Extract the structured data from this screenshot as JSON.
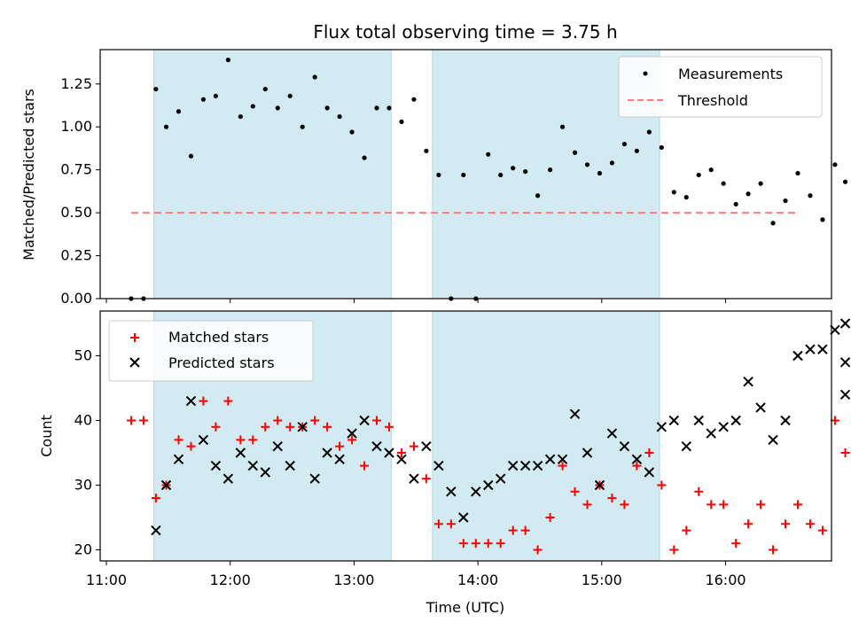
{
  "chart_data": [
    {
      "type": "scatter",
      "title": "Flux total observing time = 3.75 h",
      "xlabel": "",
      "ylabel": "Matched/Predicted stars",
      "xlim": [
        "11:00",
        "16:50"
      ],
      "ylim": [
        0,
        1.45
      ],
      "yticks": [
        "0.00",
        "0.25",
        "0.50",
        "0.75",
        "1.00",
        "1.25"
      ],
      "grid": false,
      "legend_placement": "top-right",
      "shaded_intervals": [
        [
          "11:23",
          "13:18"
        ],
        [
          "13:38",
          "15:28"
        ]
      ],
      "shade_color": "#add8e6",
      "series": [
        {
          "name": "Measurements",
          "marker": "dot",
          "color": "#000000",
          "x": [
            "11:12",
            "11:18",
            "11:24",
            "11:29",
            "11:35",
            "11:41",
            "11:47",
            "11:53",
            "11:59",
            "12:05",
            "12:11",
            "12:17",
            "12:23",
            "12:29",
            "12:35",
            "12:41",
            "12:47",
            "12:53",
            "12:59",
            "13:05",
            "13:11",
            "13:17",
            "13:23",
            "13:29",
            "13:35",
            "13:41",
            "13:47",
            "13:53",
            "13:59",
            "14:05",
            "14:11",
            "14:17",
            "14:23",
            "14:29",
            "14:35",
            "14:41",
            "14:47",
            "14:53",
            "14:59",
            "15:05",
            "15:11",
            "15:17",
            "15:23",
            "15:29",
            "15:35",
            "15:41",
            "15:47",
            "15:53",
            "15:59",
            "16:05",
            "16:11",
            "16:17",
            "16:23",
            "16:29",
            "16:35",
            "16:41",
            "16:47",
            "16:53",
            "16:58"
          ],
          "y": [
            0.0,
            0.0,
            1.22,
            1.0,
            1.09,
            0.83,
            1.16,
            1.18,
            1.39,
            1.06,
            1.12,
            1.22,
            1.11,
            1.18,
            1.0,
            1.29,
            1.11,
            1.06,
            0.97,
            0.82,
            1.11,
            1.11,
            1.03,
            1.16,
            0.86,
            0.72,
            0.0,
            0.72,
            0.0,
            0.84,
            0.72,
            0.76,
            0.74,
            0.6,
            0.75,
            1.0,
            0.85,
            0.78,
            0.73,
            0.79,
            0.9,
            0.86,
            0.97,
            0.88,
            0.62,
            0.59,
            0.72,
            0.75,
            0.67,
            0.55,
            0.61,
            0.67,
            0.44,
            0.57,
            0.73,
            0.6,
            0.46,
            0.78,
            0.68
          ]
        },
        {
          "name": "Threshold",
          "marker": "dashed-line",
          "color": "#ff7b7b",
          "x": [
            "11:12",
            "16:35"
          ],
          "y": [
            0.5,
            0.5
          ]
        }
      ]
    },
    {
      "type": "scatter",
      "title": "",
      "xlabel": "Time (UTC)",
      "ylabel": "Count",
      "xlim": [
        "11:00",
        "16:50"
      ],
      "ylim": [
        18,
        56
      ],
      "yticks": [
        "20",
        "30",
        "40",
        "50"
      ],
      "xticks": [
        "11:00",
        "12:00",
        "13:00",
        "14:00",
        "15:00",
        "16:00"
      ],
      "grid": false,
      "legend_placement": "top-left",
      "shaded_intervals": [
        [
          "11:23",
          "13:18"
        ],
        [
          "13:38",
          "15:28"
        ]
      ],
      "shade_color": "#add8e6",
      "series": [
        {
          "name": "Matched stars",
          "marker": "plus",
          "color": "#ff0000",
          "x": [
            "11:12",
            "11:18",
            "11:24",
            "11:29",
            "11:35",
            "11:41",
            "11:47",
            "11:53",
            "11:59",
            "12:05",
            "12:11",
            "12:17",
            "12:23",
            "12:29",
            "12:35",
            "12:41",
            "12:47",
            "12:53",
            "12:59",
            "13:05",
            "13:11",
            "13:17",
            "13:23",
            "13:29",
            "13:35",
            "13:41",
            "13:47",
            "13:53",
            "13:59",
            "14:05",
            "14:11",
            "14:17",
            "14:23",
            "14:29",
            "14:35",
            "14:41",
            "14:47",
            "14:53",
            "14:59",
            "15:05",
            "15:11",
            "15:17",
            "15:23",
            "15:29",
            "15:35",
            "15:41",
            "15:47",
            "15:53",
            "15:59",
            "16:05",
            "16:11",
            "16:17",
            "16:23",
            "16:29",
            "16:35",
            "16:41",
            "16:47",
            "16:53",
            "16:58"
          ],
          "y": [
            40,
            40,
            28,
            30,
            37,
            36,
            43,
            39,
            43,
            37,
            37,
            39,
            40,
            39,
            39,
            40,
            39,
            36,
            37,
            33,
            40,
            39,
            35,
            36,
            31,
            24,
            24,
            21,
            21,
            21,
            21,
            23,
            23,
            20,
            25,
            33,
            29,
            27,
            30,
            28,
            27,
            33,
            35,
            30,
            20,
            23,
            29,
            27,
            27,
            21,
            24,
            27,
            20,
            24,
            27,
            24,
            23,
            40,
            35
          ]
        },
        {
          "name": "Predicted stars",
          "marker": "x",
          "color": "#000000",
          "x": [
            "11:24",
            "11:29",
            "11:35",
            "11:41",
            "11:47",
            "11:53",
            "11:59",
            "12:05",
            "12:11",
            "12:17",
            "12:23",
            "12:29",
            "12:35",
            "12:41",
            "12:47",
            "12:53",
            "12:59",
            "13:05",
            "13:11",
            "13:17",
            "13:23",
            "13:29",
            "13:35",
            "13:41",
            "13:47",
            "13:53",
            "13:59",
            "14:05",
            "14:11",
            "14:17",
            "14:23",
            "14:29",
            "14:35",
            "14:41",
            "14:47",
            "14:53",
            "14:59",
            "15:05",
            "15:11",
            "15:17",
            "15:23",
            "15:29",
            "15:35",
            "15:41",
            "15:47",
            "15:53",
            "15:59",
            "16:05",
            "16:11",
            "16:17",
            "16:23",
            "16:29",
            "16:35",
            "16:41",
            "16:47",
            "16:53",
            "16:58",
            "16:58",
            "16:58"
          ],
          "y": [
            23,
            30,
            34,
            43,
            37,
            33,
            31,
            35,
            33,
            32,
            36,
            33,
            39,
            31,
            35,
            34,
            38,
            40,
            36,
            35,
            34,
            31,
            36,
            33,
            29,
            25,
            29,
            30,
            31,
            33,
            33,
            33,
            34,
            34,
            41,
            35,
            30,
            38,
            36,
            34,
            32,
            39,
            40,
            36,
            40,
            38,
            39,
            40,
            46,
            42,
            37,
            40,
            50,
            51,
            51,
            54,
            55,
            49,
            44
          ]
        }
      ]
    }
  ]
}
